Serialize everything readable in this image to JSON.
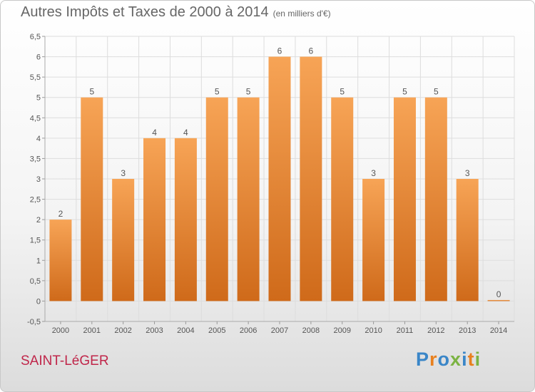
{
  "title": "Autres Impôts et Taxes de 2000 à 2014",
  "subtitle": "(en milliers d'€)",
  "commune": "SAINT-LéGER",
  "logo": {
    "letters": [
      "P",
      "r",
      "o",
      "x",
      "i",
      "t",
      "i"
    ],
    "colors": [
      "#3a86c8",
      "#e8801e",
      "#3a86c8",
      "#7bb342",
      "#3a86c8",
      "#e8801e",
      "#7bb342"
    ]
  },
  "colors": {
    "bar_top": "#f7a456",
    "bar_bottom": "#cf6a1a",
    "label": "#555555",
    "grid": "#dddddd"
  },
  "chart_data": {
    "type": "bar",
    "title": "Autres Impôts et Taxes de 2000 à 2014",
    "subtitle": "(en milliers d'€)",
    "categories": [
      "2000",
      "2001",
      "2002",
      "2003",
      "2004",
      "2005",
      "2006",
      "2007",
      "2008",
      "2009",
      "2010",
      "2011",
      "2012",
      "2013",
      "2014"
    ],
    "values": [
      2,
      5,
      3,
      4,
      4,
      5,
      5,
      6,
      6,
      5,
      3,
      5,
      5,
      3,
      0
    ],
    "data_labels": [
      "2",
      "5",
      "3",
      "4",
      "4",
      "5",
      "5",
      "6",
      "6",
      "5",
      "3",
      "5",
      "5",
      "3",
      "0"
    ],
    "yticks": [
      "-0,5",
      "0",
      "0,5",
      "1",
      "1,5",
      "2",
      "2,5",
      "3",
      "3,5",
      "4",
      "4,5",
      "5",
      "5,5",
      "6",
      "6,5"
    ],
    "ytick_values": [
      -0.5,
      0,
      0.5,
      1,
      1.5,
      2,
      2.5,
      3,
      3.5,
      4,
      4.5,
      5,
      5.5,
      6,
      6.5
    ],
    "ylim": [
      -0.5,
      6.5
    ],
    "xlabel": "",
    "ylabel": "",
    "grid": true
  }
}
